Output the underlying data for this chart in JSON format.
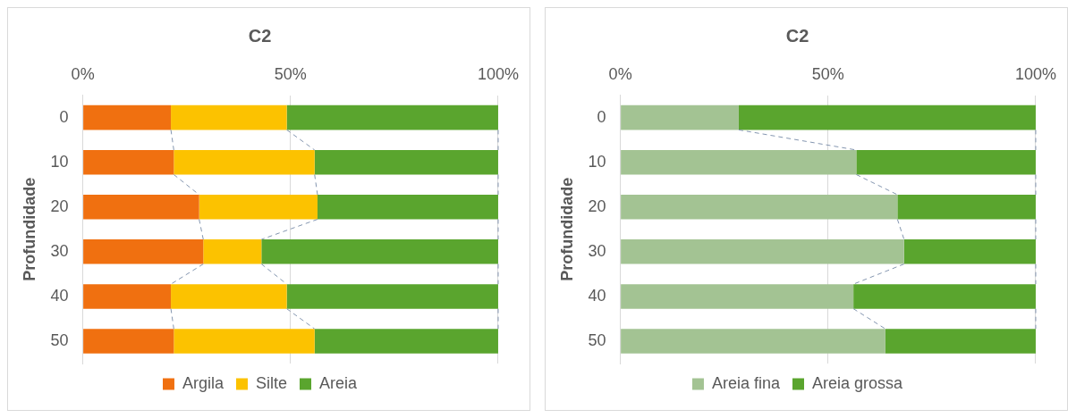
{
  "chart_data": [
    {
      "type": "bar",
      "title": "C2",
      "orientation": "horizontal",
      "stacked": true,
      "ylabel": "Profundidade",
      "categories": [
        "0",
        "10",
        "20",
        "30",
        "40",
        "50"
      ],
      "series": [
        {
          "name": "Argila",
          "color": "#f07010",
          "values": [
            21.2,
            21.9,
            28.0,
            29.0,
            21.2,
            21.9
          ]
        },
        {
          "name": "Silte",
          "color": "#fcc200",
          "values": [
            27.9,
            33.9,
            28.5,
            14.0,
            27.9,
            33.9
          ]
        },
        {
          "name": "Areia",
          "color": "#5aa52e",
          "values": [
            50.9,
            44.2,
            43.5,
            57.0,
            50.9,
            44.2
          ]
        }
      ],
      "xlim": [
        0,
        100
      ],
      "xticks": [
        {
          "value": 0,
          "label": "0%"
        },
        {
          "value": 50,
          "label": "50%"
        },
        {
          "value": 100,
          "label": "100%"
        }
      ],
      "grid": "x",
      "legend": "bottom"
    },
    {
      "type": "bar",
      "title": "C2",
      "orientation": "horizontal",
      "stacked": true,
      "ylabel": "Profundidade",
      "categories": [
        "0",
        "10",
        "20",
        "30",
        "40",
        "50"
      ],
      "series": [
        {
          "name": "Areia fina",
          "color": "#a3c393",
          "values": [
            28.5,
            56.8,
            66.7,
            68.3,
            56.1,
            63.8
          ]
        },
        {
          "name": "Areia grossa",
          "color": "#5aa52e",
          "values": [
            71.5,
            43.2,
            33.3,
            31.7,
            43.9,
            36.2
          ]
        }
      ],
      "xlim": [
        0,
        100
      ],
      "xticks": [
        {
          "value": 0,
          "label": "0%"
        },
        {
          "value": 50,
          "label": "50%"
        },
        {
          "value": 100,
          "label": "100%"
        }
      ],
      "grid": "x",
      "legend": "bottom"
    }
  ]
}
